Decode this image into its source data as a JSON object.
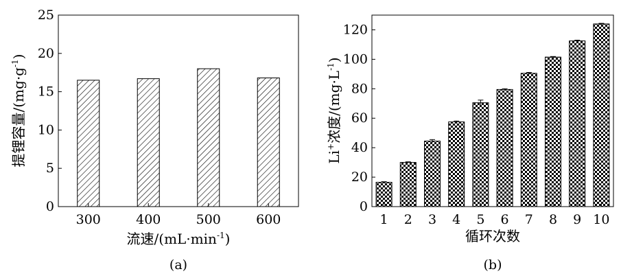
{
  "chart_data": [
    {
      "type": "bar",
      "panel_label": "(a)",
      "categories": [
        "300",
        "400",
        "500",
        "600"
      ],
      "values": [
        16.5,
        16.7,
        18.0,
        16.8
      ],
      "ylim": [
        0,
        25
      ],
      "yticks": [
        "0",
        "5",
        "10",
        "15",
        "20",
        "25"
      ],
      "xlabel": "流速/(mL·min",
      "xlabel_sup": "-1",
      "xlabel_tail": ")",
      "ylabel": "提锂容量/(mg·g",
      "ylabel_sup": "-1",
      "ylabel_tail": ")",
      "bar_fill": "diagonal-hatch",
      "grid": false
    },
    {
      "type": "bar",
      "panel_label": "(b)",
      "categories": [
        "1",
        "2",
        "3",
        "4",
        "5",
        "6",
        "7",
        "8",
        "9",
        "10"
      ],
      "values": [
        16.5,
        30.0,
        44.5,
        57.5,
        70.5,
        79.5,
        90.5,
        101.5,
        112.5,
        124.0
      ],
      "errors": [
        0.4,
        0.4,
        1.0,
        0.6,
        1.8,
        0.5,
        0.6,
        0.4,
        0.5,
        0.4
      ],
      "ylim": [
        0,
        130
      ],
      "yticks": [
        "0",
        "20",
        "40",
        "60",
        "80",
        "100",
        "120"
      ],
      "xlabel": "循环次数",
      "ylabel_prefix": "Li",
      "ylabel_prefix_sup": "+",
      "ylabel": "浓度/(mg·L",
      "ylabel_sup": "-1",
      "ylabel_tail": ")",
      "bar_fill": "checkerboard",
      "grid": false
    }
  ]
}
